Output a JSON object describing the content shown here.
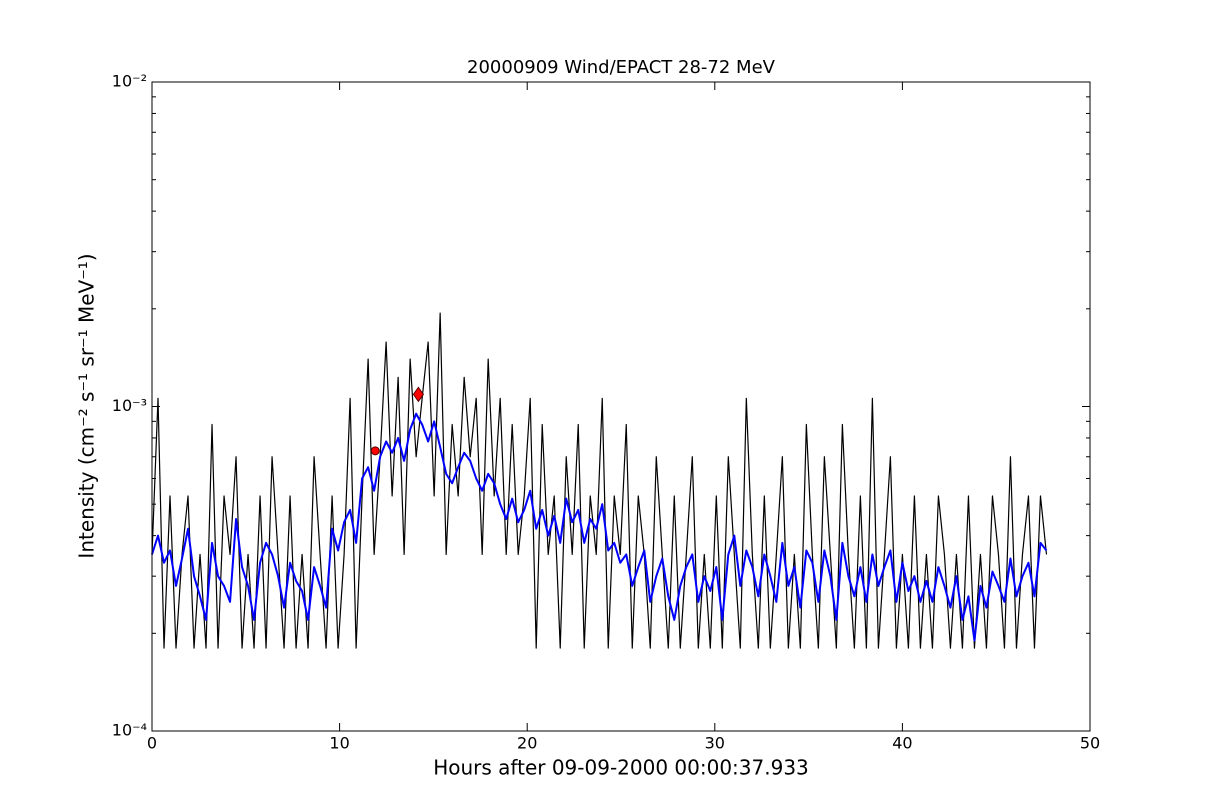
{
  "chart_data": {
    "type": "line",
    "title": "20000909 Wind/EPACT 28-72 MeV",
    "xlabel": "Hours after 09-09-2000 00:00:37.933",
    "ylabel": "Intensity (cm⁻² s⁻¹ sr⁻¹ MeV⁻¹)",
    "log_y": true,
    "xlim": [
      0,
      50
    ],
    "ylim": [
      0.0001,
      0.01
    ],
    "xticks": [
      0,
      10,
      20,
      30,
      40,
      50
    ],
    "yticks": [
      {
        "value": 0.0001,
        "label": "10⁻⁴"
      },
      {
        "value": 0.001,
        "label": "10⁻³"
      },
      {
        "value": 0.01,
        "label": "10⁻²"
      }
    ],
    "yminorticks": [
      0.0002,
      0.0003,
      0.0004,
      0.0005,
      0.0006,
      0.0007,
      0.0008,
      0.0009,
      0.002,
      0.003,
      0.004,
      0.005,
      0.006,
      0.007,
      0.008,
      0.009
    ],
    "x": [
      0,
      0.32,
      0.64,
      0.96,
      1.28,
      1.6,
      1.92,
      2.24,
      2.56,
      2.88,
      3.2,
      3.52,
      3.84,
      4.16,
      4.48,
      4.8,
      5.12,
      5.44,
      5.76,
      6.08,
      6.4,
      6.72,
      7.04,
      7.36,
      7.68,
      8,
      8.32,
      8.64,
      8.96,
      9.28,
      9.6,
      9.92,
      10.24,
      10.56,
      10.88,
      11.2,
      11.52,
      11.84,
      12.16,
      12.48,
      12.8,
      13.12,
      13.44,
      13.76,
      14.08,
      14.4,
      14.72,
      15.04,
      15.36,
      15.68,
      16,
      16.32,
      16.64,
      16.96,
      17.28,
      17.6,
      17.92,
      18.24,
      18.56,
      18.88,
      19.2,
      19.52,
      19.84,
      20.16,
      20.48,
      20.8,
      21.12,
      21.44,
      21.76,
      22.08,
      22.4,
      22.72,
      23.04,
      23.36,
      23.68,
      24,
      24.32,
      24.64,
      24.96,
      25.28,
      25.6,
      25.92,
      26.24,
      26.56,
      26.88,
      27.2,
      27.52,
      27.84,
      28.16,
      28.48,
      28.8,
      29.12,
      29.44,
      29.76,
      30.08,
      30.4,
      30.72,
      31.04,
      31.36,
      31.68,
      32,
      32.32,
      32.64,
      32.96,
      33.28,
      33.6,
      33.92,
      34.24,
      34.56,
      34.88,
      35.2,
      35.52,
      35.84,
      36.16,
      36.48,
      36.8,
      37.12,
      37.44,
      37.76,
      38.08,
      38.4,
      38.72,
      39.04,
      39.36,
      39.68,
      40,
      40.32,
      40.64,
      40.96,
      41.28,
      41.6,
      41.92,
      42.24,
      42.56,
      42.88,
      43.2,
      43.52,
      43.84,
      44.16,
      44.48,
      44.8,
      45.12,
      45.44,
      45.76,
      46.08,
      46.4,
      46.72,
      47.04,
      47.36,
      47.68
    ],
    "series": [
      {
        "color": "#000000",
        "values": [
          0.00035,
          0.00106,
          0.00018,
          0.00053,
          0.00018,
          0.00035,
          0.00053,
          0.00018,
          0.00035,
          0.00018,
          0.00088,
          0.00018,
          0.00053,
          0.00035,
          0.0007,
          0.00018,
          0.00035,
          0.00018,
          0.00053,
          0.00018,
          0.0007,
          0.00035,
          0.00018,
          0.00053,
          0.00018,
          0.00035,
          0.00018,
          0.0007,
          0.00035,
          0.00018,
          0.00053,
          0.00018,
          0.00035,
          0.00106,
          0.00018,
          0.00053,
          0.0014,
          0.00035,
          0.0007,
          0.00158,
          0.00053,
          0.00123,
          0.00035,
          0.0014,
          0.0007,
          0.00106,
          0.00158,
          0.00053,
          0.00194,
          0.00035,
          0.00088,
          0.00053,
          0.00123,
          0.0007,
          0.00106,
          0.00035,
          0.0014,
          0.00053,
          0.00106,
          0.00035,
          0.00088,
          0.00035,
          0.00053,
          0.00106,
          0.00018,
          0.00088,
          0.00035,
          0.00053,
          0.00018,
          0.0007,
          0.00035,
          0.00088,
          0.00018,
          0.00053,
          0.00035,
          0.00106,
          0.00018,
          0.00053,
          0.00035,
          0.00088,
          0.00018,
          0.00053,
          0.00035,
          0.00018,
          0.0007,
          0.00035,
          0.00018,
          0.00053,
          0.00018,
          0.00035,
          0.0007,
          0.00018,
          0.00035,
          0.00018,
          0.00053,
          0.00018,
          0.0007,
          0.00035,
          0.00018,
          0.00106,
          0.00035,
          0.00018,
          0.00053,
          0.00018,
          0.00035,
          0.0007,
          0.00018,
          0.00035,
          0.00018,
          0.00088,
          0.00035,
          0.00018,
          0.0007,
          0.00035,
          0.00018,
          0.00088,
          0.00035,
          0.00018,
          0.00053,
          0.00018,
          0.00106,
          0.00018,
          0.00035,
          0.0007,
          0.00018,
          0.00035,
          0.00018,
          0.00053,
          0.00018,
          0.00035,
          0.00018,
          0.00053,
          0.00035,
          0.00018,
          0.00035,
          0.00018,
          0.00053,
          0.00018,
          0.00035,
          0.00018,
          0.00053,
          0.00035,
          0.00018,
          0.0007,
          0.00018,
          0.00035,
          0.00053,
          0.00018,
          0.00053,
          0.00035
        ]
      },
      {
        "color": "#0000ff",
        "values": [
          0.00035,
          0.0004,
          0.00033,
          0.00036,
          0.00028,
          0.00034,
          0.00042,
          0.0003,
          0.00026,
          0.00022,
          0.00038,
          0.0003,
          0.00028,
          0.00025,
          0.00045,
          0.00032,
          0.00028,
          0.00022,
          0.00033,
          0.00038,
          0.00035,
          0.0003,
          0.00024,
          0.00033,
          0.00029,
          0.00027,
          0.00022,
          0.00032,
          0.00028,
          0.00024,
          0.00042,
          0.00036,
          0.00044,
          0.00048,
          0.00038,
          0.0006,
          0.00065,
          0.00055,
          0.0007,
          0.00078,
          0.00072,
          0.0008,
          0.00068,
          0.00085,
          0.00095,
          0.00088,
          0.00078,
          0.0009,
          0.00075,
          0.00062,
          0.00058,
          0.00065,
          0.00072,
          0.00068,
          0.0006,
          0.00055,
          0.00062,
          0.00058,
          0.0005,
          0.00045,
          0.00052,
          0.00044,
          0.00048,
          0.00055,
          0.00042,
          0.00048,
          0.0004,
          0.00046,
          0.00038,
          0.00052,
          0.00044,
          0.00048,
          0.00038,
          0.00045,
          0.00042,
          0.0005,
          0.00036,
          0.00038,
          0.00033,
          0.00035,
          0.00028,
          0.00032,
          0.00036,
          0.00025,
          0.0003,
          0.00034,
          0.00026,
          0.00022,
          0.00028,
          0.00032,
          0.00035,
          0.00025,
          0.0003,
          0.00027,
          0.00032,
          0.00022,
          0.00035,
          0.0004,
          0.00028,
          0.00036,
          0.00032,
          0.00026,
          0.00035,
          0.0003,
          0.00025,
          0.00038,
          0.00028,
          0.00032,
          0.00024,
          0.00036,
          0.00033,
          0.00025,
          0.00036,
          0.0003,
          0.00022,
          0.00038,
          0.0003,
          0.00026,
          0.00032,
          0.00025,
          0.00035,
          0.00028,
          0.00032,
          0.00036,
          0.00025,
          0.00033,
          0.00027,
          0.0003,
          0.00025,
          0.00029,
          0.00025,
          0.00032,
          0.00028,
          0.00024,
          0.0003,
          0.00022,
          0.00026,
          0.00019,
          0.00028,
          0.00024,
          0.00031,
          0.00028,
          0.00025,
          0.00034,
          0.00026,
          0.0003,
          0.00033,
          0.00026,
          0.00038,
          0.00036
        ]
      }
    ],
    "points": [
      {
        "x": 11.9,
        "y": 0.00073,
        "marker": "circle",
        "color": "#ff0000"
      },
      {
        "x": 14.2,
        "y": 0.00109,
        "marker": "diamond",
        "color": "#ff0000"
      }
    ]
  }
}
